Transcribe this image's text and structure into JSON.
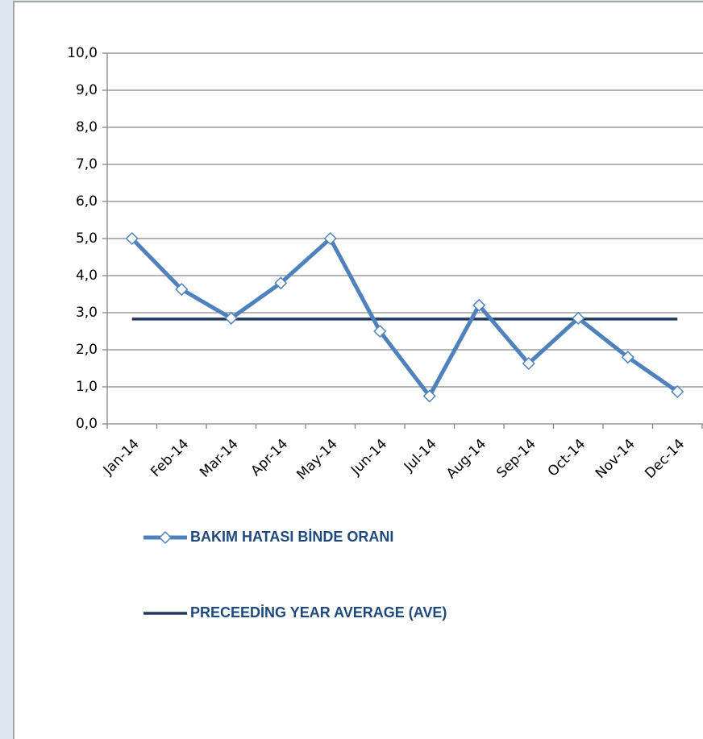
{
  "chart_data": {
    "type": "line",
    "categories": [
      "Jan-14",
      "Feb-14",
      "Mar-14",
      "Apr-14",
      "May-14",
      "Jun-14",
      "Jul-14",
      "Aug-14",
      "Sep-14",
      "Oct-14",
      "Nov-14",
      "Dec-14"
    ],
    "series": [
      {
        "name": "BAKIM HATASI BİNDE ORANI",
        "color": "#4f81bd",
        "marker": "diamond",
        "values": [
          5.0,
          3.63,
          2.85,
          3.8,
          5.0,
          2.5,
          0.75,
          3.2,
          1.63,
          2.85,
          1.8,
          0.87
        ]
      },
      {
        "name": "PRECEEDİNG YEAR AVERAGE (AVE)",
        "color": "#1f3864",
        "values": [
          2.83,
          2.83,
          2.83,
          2.83,
          2.83,
          2.83,
          2.83,
          2.83,
          2.83,
          2.83,
          2.83,
          2.83
        ]
      }
    ],
    "ylim": [
      0,
      10
    ],
    "yticks": [
      {
        "value": 0,
        "label": "0,0"
      },
      {
        "value": 1,
        "label": "1,0"
      },
      {
        "value": 2,
        "label": "2,0"
      },
      {
        "value": 3,
        "label": "3,0"
      },
      {
        "value": 4,
        "label": "4,0"
      },
      {
        "value": 5,
        "label": "5,0"
      },
      {
        "value": 6,
        "label": "6,0"
      },
      {
        "value": 7,
        "label": "7,0"
      },
      {
        "value": 8,
        "label": "8,0"
      },
      {
        "value": 9,
        "label": "9,0"
      },
      {
        "value": 10,
        "label": "10,0"
      }
    ],
    "grid": true
  }
}
